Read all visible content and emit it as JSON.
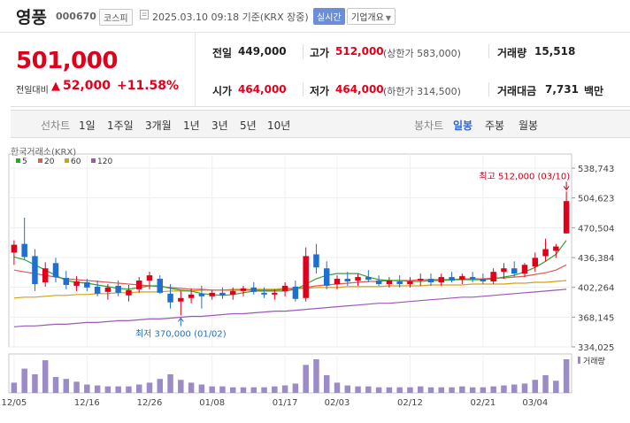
{
  "header": {
    "stock_name": "영풍",
    "stock_code": "000670",
    "market": "코스피",
    "timestamp": "2025.03.10 09:18 기준(KRX 장중)",
    "realtime": "실시간",
    "company_info": "기업개요"
  },
  "price": {
    "current": "501,000",
    "change_label": "전일대비",
    "change_value": "52,000",
    "change_pct": "+11.58%"
  },
  "summary": {
    "prev_close_label": "전일",
    "prev_close": "449,000",
    "high_label": "고가",
    "high": "512,000",
    "upper_limit": "(상한가 583,000)",
    "volume_label": "거래량",
    "volume": "15,518",
    "open_label": "시가",
    "open": "464,000",
    "low_label": "저가",
    "low": "464,000",
    "lower_limit": "(하한가 314,500)",
    "turnover_label": "거래대금",
    "turnover": "7,731",
    "turnover_unit": "백만"
  },
  "period_bar": {
    "select_title": "선차트",
    "periods": [
      "1일",
      "1주일",
      "3개월",
      "1년",
      "3년",
      "5년",
      "10년"
    ],
    "candle_title": "봉차트",
    "candles": [
      "일봉",
      "주봉",
      "월봉"
    ],
    "active_candle": "일봉"
  },
  "colors": {
    "up": "#e0001b",
    "down": "#1f6fd1",
    "ma5": "#2ea32e",
    "ma20": "#e05a5a",
    "ma60": "#d4a017",
    "ma120": "#9b59b6",
    "volume": "#9b8cc8"
  },
  "chart_data": {
    "type": "candlestick",
    "source_label": "한국거래소(KRX)",
    "legend": [
      {
        "name": "5",
        "color": "#2ea32e"
      },
      {
        "name": "20",
        "color": "#e05a5a"
      },
      {
        "name": "60",
        "color": "#d4a017"
      },
      {
        "name": "120",
        "color": "#9b59b6"
      }
    ],
    "y_ticks": [
      "538,743",
      "504,623",
      "470,504",
      "436,384",
      "402,264",
      "368,145",
      "334,025"
    ],
    "ylim": [
      334025,
      538743
    ],
    "x_ticks": [
      {
        "label": "12/05",
        "i": 0
      },
      {
        "label": "12/16",
        "i": 7
      },
      {
        "label": "12/26",
        "i": 13
      },
      {
        "label": "01/08",
        "i": 19
      },
      {
        "label": "01/17",
        "i": 26
      },
      {
        "label": "02/03",
        "i": 31
      },
      {
        "label": "02/12",
        "i": 38
      },
      {
        "label": "02/21",
        "i": 45
      },
      {
        "label": "03/04",
        "i": 50
      }
    ],
    "high_annotation": "최고 512,000 (03/10)",
    "low_annotation": "최저 370,000 (01/02)",
    "volume_label": "거래량",
    "candles": [
      {
        "o": 442000,
        "h": 456000,
        "l": 428000,
        "c": 451000
      },
      {
        "o": 452000,
        "h": 482000,
        "l": 434000,
        "c": 437000
      },
      {
        "o": 438000,
        "h": 446000,
        "l": 398000,
        "c": 406000
      },
      {
        "o": 408000,
        "h": 431000,
        "l": 403000,
        "c": 424000
      },
      {
        "o": 430000,
        "h": 436000,
        "l": 408000,
        "c": 414000
      },
      {
        "o": 413000,
        "h": 421000,
        "l": 400000,
        "c": 405000
      },
      {
        "o": 404000,
        "h": 415000,
        "l": 398000,
        "c": 409000
      },
      {
        "o": 408000,
        "h": 412000,
        "l": 398000,
        "c": 402000
      },
      {
        "o": 403000,
        "h": 410000,
        "l": 392000,
        "c": 395000
      },
      {
        "o": 397000,
        "h": 406000,
        "l": 388000,
        "c": 402000
      },
      {
        "o": 404000,
        "h": 410000,
        "l": 392000,
        "c": 396000
      },
      {
        "o": 393000,
        "h": 405000,
        "l": 386000,
        "c": 399000
      },
      {
        "o": 400000,
        "h": 414000,
        "l": 396000,
        "c": 410000
      },
      {
        "o": 410000,
        "h": 420000,
        "l": 400000,
        "c": 416000
      },
      {
        "o": 412000,
        "h": 416000,
        "l": 395000,
        "c": 396000
      },
      {
        "o": 395000,
        "h": 406000,
        "l": 378000,
        "c": 385000
      },
      {
        "o": 386000,
        "h": 398000,
        "l": 370000,
        "c": 390000
      },
      {
        "o": 390000,
        "h": 401000,
        "l": 384000,
        "c": 394000
      },
      {
        "o": 395000,
        "h": 404000,
        "l": 378000,
        "c": 392000
      },
      {
        "o": 392000,
        "h": 399000,
        "l": 388000,
        "c": 396000
      },
      {
        "o": 396000,
        "h": 402000,
        "l": 389000,
        "c": 393000
      },
      {
        "o": 394000,
        "h": 402000,
        "l": 388000,
        "c": 398000
      },
      {
        "o": 398000,
        "h": 404000,
        "l": 392000,
        "c": 401000
      },
      {
        "o": 402000,
        "h": 408000,
        "l": 394000,
        "c": 397000
      },
      {
        "o": 396000,
        "h": 402000,
        "l": 390000,
        "c": 394000
      },
      {
        "o": 394000,
        "h": 400000,
        "l": 388000,
        "c": 396000
      },
      {
        "o": 398000,
        "h": 408000,
        "l": 392000,
        "c": 404000
      },
      {
        "o": 403000,
        "h": 410000,
        "l": 386000,
        "c": 389000
      },
      {
        "o": 390000,
        "h": 448000,
        "l": 386000,
        "c": 438000
      },
      {
        "o": 440000,
        "h": 452000,
        "l": 418000,
        "c": 425000
      },
      {
        "o": 424000,
        "h": 432000,
        "l": 400000,
        "c": 404000
      },
      {
        "o": 406000,
        "h": 416000,
        "l": 400000,
        "c": 412000
      },
      {
        "o": 412000,
        "h": 420000,
        "l": 404000,
        "c": 409000
      },
      {
        "o": 410000,
        "h": 418000,
        "l": 404000,
        "c": 414000
      },
      {
        "o": 414000,
        "h": 422000,
        "l": 408000,
        "c": 411000
      },
      {
        "o": 410000,
        "h": 416000,
        "l": 404000,
        "c": 406000
      },
      {
        "o": 406000,
        "h": 414000,
        "l": 402000,
        "c": 410000
      },
      {
        "o": 409000,
        "h": 416000,
        "l": 402000,
        "c": 406000
      },
      {
        "o": 406000,
        "h": 414000,
        "l": 402000,
        "c": 409000
      },
      {
        "o": 410000,
        "h": 418000,
        "l": 404000,
        "c": 412000
      },
      {
        "o": 412000,
        "h": 418000,
        "l": 404000,
        "c": 408000
      },
      {
        "o": 408000,
        "h": 418000,
        "l": 404000,
        "c": 414000
      },
      {
        "o": 414000,
        "h": 420000,
        "l": 408000,
        "c": 410000
      },
      {
        "o": 411000,
        "h": 418000,
        "l": 406000,
        "c": 415000
      },
      {
        "o": 414000,
        "h": 420000,
        "l": 408000,
        "c": 412000
      },
      {
        "o": 412000,
        "h": 418000,
        "l": 406000,
        "c": 409000
      },
      {
        "o": 409000,
        "h": 424000,
        "l": 406000,
        "c": 420000
      },
      {
        "o": 420000,
        "h": 430000,
        "l": 412000,
        "c": 424000
      },
      {
        "o": 424000,
        "h": 432000,
        "l": 414000,
        "c": 418000
      },
      {
        "o": 418000,
        "h": 430000,
        "l": 414000,
        "c": 428000
      },
      {
        "o": 426000,
        "h": 442000,
        "l": 420000,
        "c": 436000
      },
      {
        "o": 438000,
        "h": 458000,
        "l": 432000,
        "c": 446000
      },
      {
        "o": 444000,
        "h": 452000,
        "l": 436000,
        "c": 449000
      },
      {
        "o": 464000,
        "h": 512000,
        "l": 464000,
        "c": 501000
      }
    ],
    "ma5": [
      437000,
      434000,
      428000,
      422000,
      416000,
      410000,
      408000,
      407000,
      405000,
      403000,
      401000,
      400000,
      402000,
      404000,
      404000,
      401000,
      399000,
      398000,
      395000,
      394000,
      393000,
      394000,
      396000,
      398000,
      398000,
      398000,
      398000,
      400000,
      406000,
      412000,
      416000,
      418000,
      418000,
      418000,
      414000,
      411000,
      410000,
      410000,
      409000,
      409000,
      410000,
      410000,
      411000,
      411000,
      411000,
      411000,
      412000,
      414000,
      416000,
      420000,
      425000,
      432000,
      440000,
      456000
    ],
    "ma20": [
      422000,
      420000,
      418000,
      416000,
      414000,
      412000,
      411000,
      410000,
      409000,
      408000,
      407000,
      406000,
      405000,
      404000,
      403000,
      402000,
      401000,
      400000,
      400000,
      399000,
      399000,
      399000,
      399000,
      399000,
      399000,
      399000,
      400000,
      401000,
      402000,
      404000,
      405000,
      406000,
      407000,
      408000,
      409000,
      409000,
      410000,
      410000,
      410000,
      411000,
      411000,
      411000,
      411000,
      412000,
      412000,
      412000,
      413000,
      413000,
      414000,
      415000,
      417000,
      419000,
      422000,
      428000
    ],
    "ma60": [
      390000,
      391000,
      391000,
      392000,
      393000,
      393000,
      394000,
      394000,
      395000,
      395000,
      396000,
      396000,
      397000,
      397000,
      397000,
      398000,
      398000,
      398000,
      399000,
      399000,
      399000,
      400000,
      400000,
      400000,
      400000,
      400000,
      401000,
      401000,
      401000,
      402000,
      402000,
      402000,
      403000,
      403000,
      403000,
      403000,
      404000,
      404000,
      404000,
      404000,
      405000,
      405000,
      405000,
      405000,
      406000,
      406000,
      406000,
      406000,
      407000,
      407000,
      408000,
      408000,
      409000,
      410000
    ],
    "ma120": [
      357000,
      358000,
      358000,
      359000,
      360000,
      360000,
      361000,
      362000,
      362000,
      363000,
      364000,
      364000,
      365000,
      366000,
      366000,
      367000,
      368000,
      369000,
      369000,
      370000,
      371000,
      372000,
      372000,
      373000,
      374000,
      375000,
      375000,
      376000,
      377000,
      378000,
      379000,
      380000,
      381000,
      382000,
      383000,
      384000,
      384000,
      385000,
      386000,
      387000,
      388000,
      389000,
      390000,
      391000,
      391000,
      392000,
      393000,
      394000,
      395000,
      396000,
      397000,
      398000,
      399000,
      400000
    ],
    "volumes": [
      22,
      52,
      40,
      70,
      34,
      30,
      24,
      18,
      16,
      14,
      14,
      14,
      18,
      22,
      30,
      40,
      28,
      22,
      18,
      14,
      14,
      12,
      12,
      12,
      12,
      14,
      16,
      20,
      60,
      72,
      38,
      22,
      16,
      14,
      14,
      12,
      12,
      12,
      12,
      14,
      12,
      12,
      12,
      14,
      12,
      12,
      14,
      16,
      18,
      20,
      28,
      38,
      26,
      72
    ]
  }
}
